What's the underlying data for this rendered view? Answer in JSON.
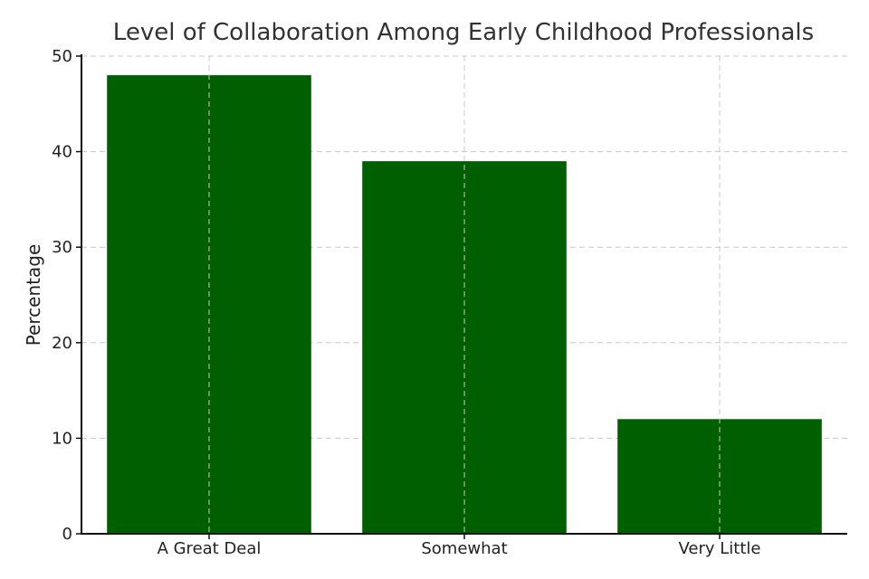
{
  "chart_data": {
    "type": "bar",
    "title": "Level of Collaboration Among Early Childhood Professionals",
    "xlabel": "",
    "ylabel": "Percentage",
    "categories": [
      "A Great Deal",
      "Somewhat",
      "Very Little"
    ],
    "values": [
      48,
      39,
      12
    ],
    "ylim": [
      0,
      50
    ],
    "yticks": [
      0,
      10,
      20,
      30,
      40,
      50
    ],
    "grid": true,
    "bar_color": "#006000"
  }
}
